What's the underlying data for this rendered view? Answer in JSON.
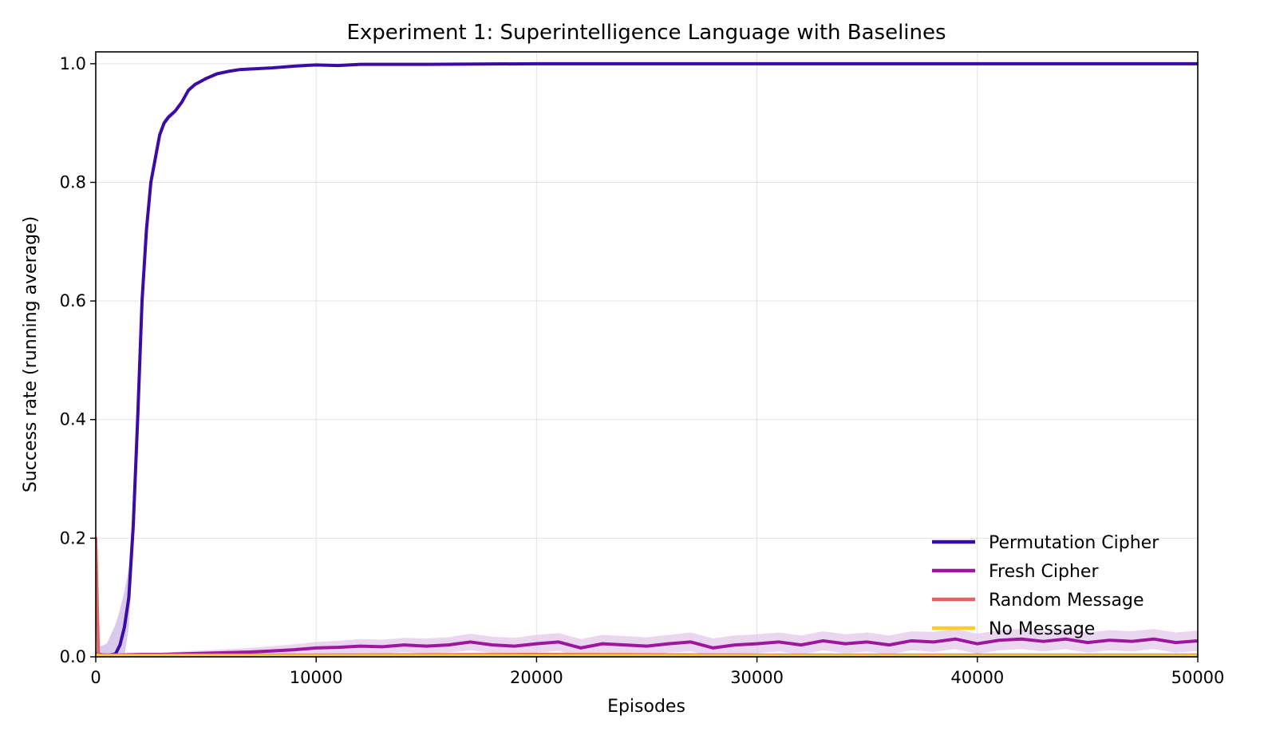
{
  "chart_data": {
    "type": "line",
    "title": "Experiment 1: Superintelligence Language with Baselines",
    "xlabel": "Episodes",
    "ylabel": "Success rate (running average)",
    "xlim": [
      0,
      50000
    ],
    "ylim": [
      0,
      1.02
    ],
    "xticks": [
      0,
      10000,
      20000,
      30000,
      40000,
      50000
    ],
    "yticks": [
      0.0,
      0.2,
      0.4,
      0.6,
      0.8,
      1.0
    ],
    "xtick_labels": [
      "0",
      "10000",
      "20000",
      "30000",
      "40000",
      "50000"
    ],
    "ytick_labels": [
      "0.0",
      "0.2",
      "0.4",
      "0.6",
      "0.8",
      "1.0"
    ],
    "grid": true,
    "legend_position": "lower-right",
    "series": [
      {
        "name": "Permutation Cipher",
        "color": "#3b0ca3",
        "band_color": "#c9b3e6",
        "x": [
          0,
          500,
          900,
          1100,
          1300,
          1500,
          1700,
          1900,
          2100,
          2300,
          2500,
          2700,
          2900,
          3100,
          3300,
          3600,
          3900,
          4200,
          4500,
          5000,
          5500,
          6000,
          6500,
          7000,
          8000,
          9000,
          10000,
          11000,
          12000,
          15000,
          20000,
          25000,
          30000,
          35000,
          40000,
          45000,
          50000
        ],
        "y": [
          0.005,
          0.002,
          0.005,
          0.02,
          0.05,
          0.1,
          0.22,
          0.4,
          0.6,
          0.72,
          0.8,
          0.84,
          0.88,
          0.9,
          0.91,
          0.92,
          0.935,
          0.955,
          0.965,
          0.975,
          0.983,
          0.987,
          0.99,
          0.991,
          0.993,
          0.996,
          0.998,
          0.997,
          0.999,
          0.999,
          1.0,
          1.0,
          1.0,
          1.0,
          1.0,
          1.0,
          1.0
        ],
        "band": [
          0.01,
          0.02,
          0.05,
          0.06,
          0.06,
          0.05,
          0.04,
          0.03,
          0.02,
          0.015,
          0.012,
          0.01,
          0.008,
          0.006,
          0.005,
          0.004,
          0.004,
          0.003,
          0.003,
          0.002,
          0.002,
          0.002,
          0.002,
          0.002,
          0.001,
          0.001,
          0.001,
          0.001,
          0.001,
          0.001,
          0.0,
          0.0,
          0.0,
          0.0,
          0.0,
          0.0,
          0.0
        ]
      },
      {
        "name": "Fresh Cipher",
        "color": "#9c179e",
        "band_color": "#e3c4ea",
        "x": [
          0,
          1000,
          2000,
          3000,
          4000,
          5000,
          6000,
          7000,
          8000,
          9000,
          10000,
          11000,
          12000,
          13000,
          14000,
          15000,
          16000,
          17000,
          18000,
          19000,
          20000,
          21000,
          22000,
          23000,
          24000,
          25000,
          26000,
          27000,
          28000,
          29000,
          30000,
          31000,
          32000,
          33000,
          34000,
          35000,
          36000,
          37000,
          38000,
          39000,
          40000,
          41000,
          42000,
          43000,
          44000,
          45000,
          46000,
          47000,
          48000,
          49000,
          50000
        ],
        "y": [
          0.003,
          0.003,
          0.004,
          0.004,
          0.005,
          0.006,
          0.007,
          0.008,
          0.01,
          0.012,
          0.015,
          0.016,
          0.018,
          0.017,
          0.02,
          0.018,
          0.02,
          0.025,
          0.02,
          0.018,
          0.022,
          0.025,
          0.015,
          0.022,
          0.02,
          0.018,
          0.022,
          0.025,
          0.015,
          0.02,
          0.022,
          0.025,
          0.02,
          0.027,
          0.022,
          0.025,
          0.02,
          0.027,
          0.025,
          0.03,
          0.022,
          0.028,
          0.03,
          0.026,
          0.03,
          0.024,
          0.028,
          0.026,
          0.03,
          0.024,
          0.027
        ],
        "band": [
          0.003,
          0.003,
          0.003,
          0.003,
          0.004,
          0.005,
          0.006,
          0.007,
          0.008,
          0.009,
          0.01,
          0.011,
          0.012,
          0.012,
          0.012,
          0.013,
          0.013,
          0.014,
          0.014,
          0.014,
          0.015,
          0.015,
          0.015,
          0.015,
          0.015,
          0.015,
          0.015,
          0.016,
          0.016,
          0.016,
          0.016,
          0.016,
          0.016,
          0.016,
          0.016,
          0.016,
          0.016,
          0.016,
          0.017,
          0.017,
          0.017,
          0.017,
          0.017,
          0.017,
          0.017,
          0.017,
          0.017,
          0.017,
          0.017,
          0.017,
          0.017
        ]
      },
      {
        "name": "Random Message",
        "color": "#e16462",
        "band_color": "#f3c1bd",
        "x": [
          0,
          60,
          120,
          200,
          1000,
          5000,
          10000,
          20000,
          30000,
          40000,
          50000
        ],
        "y": [
          0.2,
          0.1,
          0.005,
          0.003,
          0.003,
          0.003,
          0.003,
          0.004,
          0.003,
          0.003,
          0.003
        ],
        "band": [
          0.0,
          0.0,
          0.0,
          0.001,
          0.001,
          0.001,
          0.001,
          0.001,
          0.001,
          0.001,
          0.001
        ]
      },
      {
        "name": "No Message",
        "color": "#fccd25",
        "band_color": "#fdeba8",
        "x": [
          0,
          100,
          1000,
          10000,
          20000,
          30000,
          40000,
          50000
        ],
        "y": [
          0.003,
          0.002,
          0.002,
          0.002,
          0.002,
          0.002,
          0.002,
          0.002
        ],
        "band": [
          0.0,
          0.001,
          0.001,
          0.001,
          0.001,
          0.001,
          0.001,
          0.001
        ]
      }
    ]
  }
}
